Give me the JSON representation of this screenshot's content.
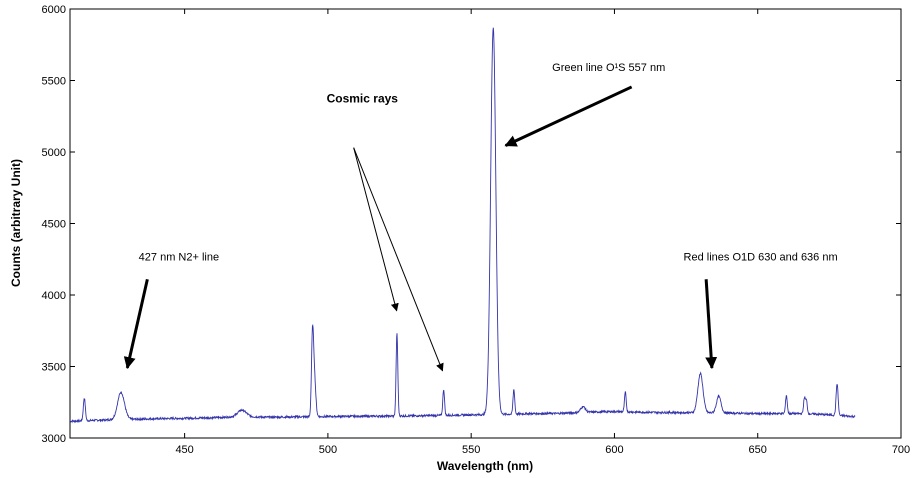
{
  "chart_data": {
    "type": "line",
    "xlabel": "Wavelength (nm)",
    "ylabel": "Counts (arbitrary Unit)",
    "xlim": [
      410,
      700
    ],
    "ylim": [
      3000,
      6000
    ],
    "x_ticks": [
      450,
      500,
      550,
      600,
      650,
      700
    ],
    "x_tick_labels": [
      "450",
      "500",
      "550",
      "600",
      "650",
      "700"
    ],
    "y_ticks": [
      3000,
      3500,
      4000,
      4500,
      5000,
      5500,
      6000
    ],
    "y_tick_labels": [
      "3000",
      "3500",
      "4000",
      "4500",
      "5000",
      "5500",
      "6000"
    ],
    "grid": false,
    "line_color": "#3333aa",
    "baseline": [
      [
        410,
        3118
      ],
      [
        415,
        3120
      ],
      [
        420,
        3125
      ],
      [
        425,
        3128
      ],
      [
        430,
        3130
      ],
      [
        440,
        3135
      ],
      [
        450,
        3138
      ],
      [
        460,
        3142
      ],
      [
        470,
        3150
      ],
      [
        480,
        3145
      ],
      [
        490,
        3148
      ],
      [
        500,
        3150
      ],
      [
        510,
        3152
      ],
      [
        520,
        3153
      ],
      [
        530,
        3155
      ],
      [
        540,
        3158
      ],
      [
        550,
        3162
      ],
      [
        560,
        3165
      ],
      [
        570,
        3170
      ],
      [
        580,
        3172
      ],
      [
        590,
        3180
      ],
      [
        600,
        3185
      ],
      [
        610,
        3180
      ],
      [
        620,
        3178
      ],
      [
        640,
        3175
      ],
      [
        650,
        3170
      ],
      [
        660,
        3172
      ],
      [
        670,
        3168
      ],
      [
        680,
        3155
      ],
      [
        684,
        3150
      ]
    ],
    "peaks": [
      {
        "x": 415.0,
        "height": 3280,
        "width": 0.35
      },
      {
        "x": 427.8,
        "height": 3320,
        "width": 1.2
      },
      {
        "x": 470.0,
        "height": 3195,
        "width": 1.5
      },
      {
        "x": 494.6,
        "height": 3625,
        "width": 0.35
      },
      {
        "x": 495.2,
        "height": 3460,
        "width": 0.5
      },
      {
        "x": 524.1,
        "height": 3730,
        "width": 0.3
      },
      {
        "x": 540.4,
        "height": 3340,
        "width": 0.3
      },
      {
        "x": 557.7,
        "height": 5870,
        "width": 0.9
      },
      {
        "x": 564.9,
        "height": 3340,
        "width": 0.3
      },
      {
        "x": 589.0,
        "height": 3220,
        "width": 0.8
      },
      {
        "x": 603.8,
        "height": 3320,
        "width": 0.3
      },
      {
        "x": 630.0,
        "height": 3450,
        "width": 0.9
      },
      {
        "x": 636.4,
        "height": 3290,
        "width": 0.8
      },
      {
        "x": 660.0,
        "height": 3300,
        "width": 0.3
      },
      {
        "x": 666.3,
        "height": 3280,
        "width": 0.3
      },
      {
        "x": 667.0,
        "height": 3260,
        "width": 0.3
      },
      {
        "x": 677.7,
        "height": 3380,
        "width": 0.35
      }
    ],
    "annotations": [
      {
        "text": "Green line O¹S 557 nm",
        "text_x": 598,
        "text_y": 5565,
        "arrows": [
          {
            "from": [
              606,
              5455
            ],
            "to": [
              562,
              5045
            ]
          }
        ],
        "bold": false,
        "heavy": true
      },
      {
        "text": "Cosmic rays",
        "text_x": 512,
        "text_y": 5345,
        "arrows": [
          {
            "from": [
              509,
              5030
            ],
            "to": [
              524,
              3890
            ]
          },
          {
            "from": [
              509,
              5030
            ],
            "to": [
              540,
              3470
            ]
          }
        ],
        "bold": true,
        "heavy": false
      },
      {
        "text": "427 nm N2+ line",
        "text_x": 448,
        "text_y": 4240,
        "arrows": [
          {
            "from": [
              437,
              4110
            ],
            "to": [
              430,
              3490
            ]
          }
        ],
        "bold": false,
        "heavy": true
      },
      {
        "text": "Red lines O1D 630 and 636 nm",
        "text_x": 651,
        "text_y": 4240,
        "arrows": [
          {
            "from": [
              632,
              4110
            ],
            "to": [
              634,
              3490
            ]
          }
        ],
        "bold": false,
        "heavy": true
      }
    ]
  }
}
